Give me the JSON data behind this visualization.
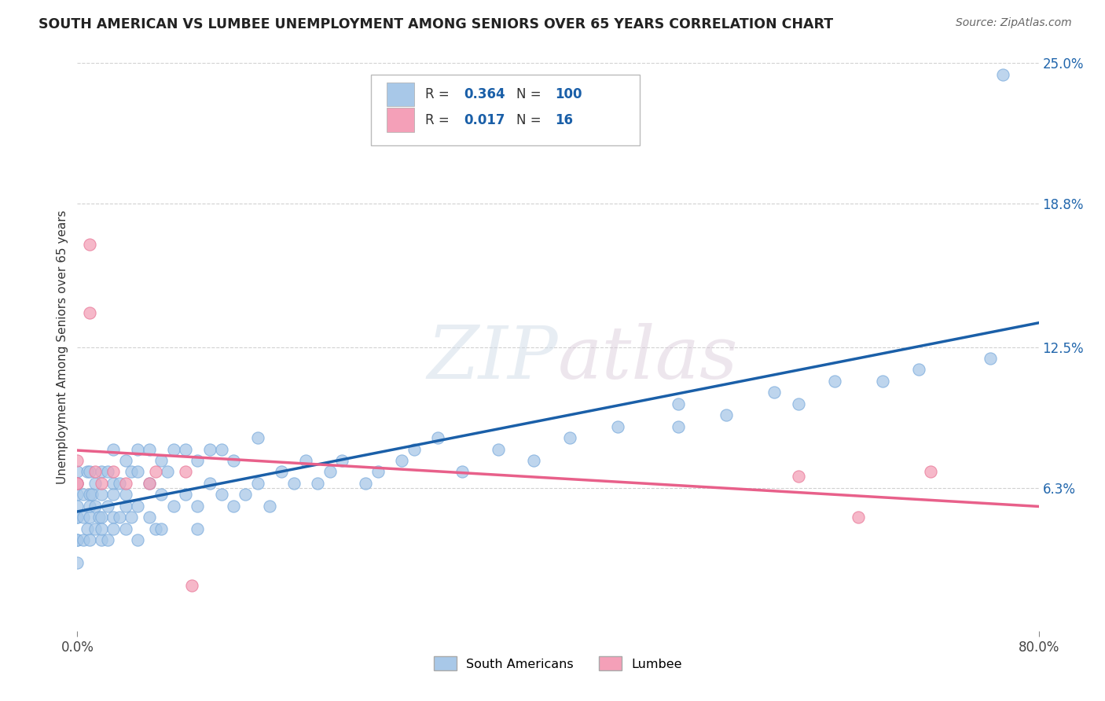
{
  "title": "SOUTH AMERICAN VS LUMBEE UNEMPLOYMENT AMONG SENIORS OVER 65 YEARS CORRELATION CHART",
  "source": "Source: ZipAtlas.com",
  "ylabel": "Unemployment Among Seniors over 65 years",
  "R_south_american": 0.364,
  "N_south_american": 100,
  "R_lumbee": 0.017,
  "N_lumbee": 16,
  "xlim": [
    0.0,
    0.8
  ],
  "ylim": [
    0.0,
    0.25
  ],
  "yticks": [
    0.063,
    0.125,
    0.188,
    0.25
  ],
  "ytick_labels": [
    "6.3%",
    "12.5%",
    "18.8%",
    "25.0%"
  ],
  "xtick_labels": [
    "0.0%",
    "80.0%"
  ],
  "xticks": [
    0.0,
    0.8
  ],
  "blue_color": "#a8c8e8",
  "pink_color": "#f4a0b8",
  "blue_line_color": "#1a5fa8",
  "pink_line_color": "#e8608a",
  "background_color": "#ffffff",
  "blue_x": [
    0.0,
    0.0,
    0.0,
    0.0,
    0.0,
    0.0,
    0.0,
    0.0,
    0.0,
    0.005,
    0.005,
    0.005,
    0.008,
    0.008,
    0.01,
    0.01,
    0.01,
    0.01,
    0.01,
    0.012,
    0.015,
    0.015,
    0.015,
    0.018,
    0.02,
    0.02,
    0.02,
    0.02,
    0.02,
    0.025,
    0.025,
    0.025,
    0.03,
    0.03,
    0.03,
    0.03,
    0.03,
    0.035,
    0.035,
    0.04,
    0.04,
    0.04,
    0.04,
    0.045,
    0.045,
    0.05,
    0.05,
    0.05,
    0.05,
    0.06,
    0.06,
    0.06,
    0.065,
    0.07,
    0.07,
    0.07,
    0.075,
    0.08,
    0.08,
    0.09,
    0.09,
    0.1,
    0.1,
    0.1,
    0.11,
    0.11,
    0.12,
    0.12,
    0.13,
    0.13,
    0.14,
    0.15,
    0.15,
    0.16,
    0.17,
    0.18,
    0.19,
    0.2,
    0.21,
    0.22,
    0.24,
    0.25,
    0.27,
    0.28,
    0.3,
    0.32,
    0.35,
    0.38,
    0.41,
    0.45,
    0.5,
    0.5,
    0.54,
    0.58,
    0.6,
    0.63,
    0.67,
    0.7,
    0.76,
    0.77
  ],
  "blue_y": [
    0.04,
    0.05,
    0.06,
    0.07,
    0.04,
    0.055,
    0.065,
    0.03,
    0.05,
    0.05,
    0.06,
    0.04,
    0.07,
    0.045,
    0.05,
    0.06,
    0.04,
    0.07,
    0.055,
    0.06,
    0.045,
    0.065,
    0.055,
    0.05,
    0.04,
    0.06,
    0.07,
    0.05,
    0.045,
    0.055,
    0.07,
    0.04,
    0.05,
    0.065,
    0.08,
    0.045,
    0.06,
    0.065,
    0.05,
    0.06,
    0.075,
    0.045,
    0.055,
    0.07,
    0.05,
    0.055,
    0.07,
    0.04,
    0.08,
    0.05,
    0.065,
    0.08,
    0.045,
    0.06,
    0.075,
    0.045,
    0.07,
    0.055,
    0.08,
    0.06,
    0.08,
    0.055,
    0.075,
    0.045,
    0.065,
    0.08,
    0.06,
    0.08,
    0.055,
    0.075,
    0.06,
    0.065,
    0.085,
    0.055,
    0.07,
    0.065,
    0.075,
    0.065,
    0.07,
    0.075,
    0.065,
    0.07,
    0.075,
    0.08,
    0.085,
    0.07,
    0.08,
    0.075,
    0.085,
    0.09,
    0.09,
    0.1,
    0.095,
    0.105,
    0.1,
    0.11,
    0.11,
    0.115,
    0.12,
    0.245
  ],
  "pink_x": [
    0.0,
    0.0,
    0.0,
    0.01,
    0.01,
    0.015,
    0.02,
    0.03,
    0.04,
    0.06,
    0.065,
    0.09,
    0.095,
    0.6,
    0.65,
    0.71
  ],
  "pink_y": [
    0.065,
    0.075,
    0.065,
    0.17,
    0.14,
    0.07,
    0.065,
    0.07,
    0.065,
    0.065,
    0.07,
    0.07,
    0.02,
    0.068,
    0.05,
    0.07
  ]
}
